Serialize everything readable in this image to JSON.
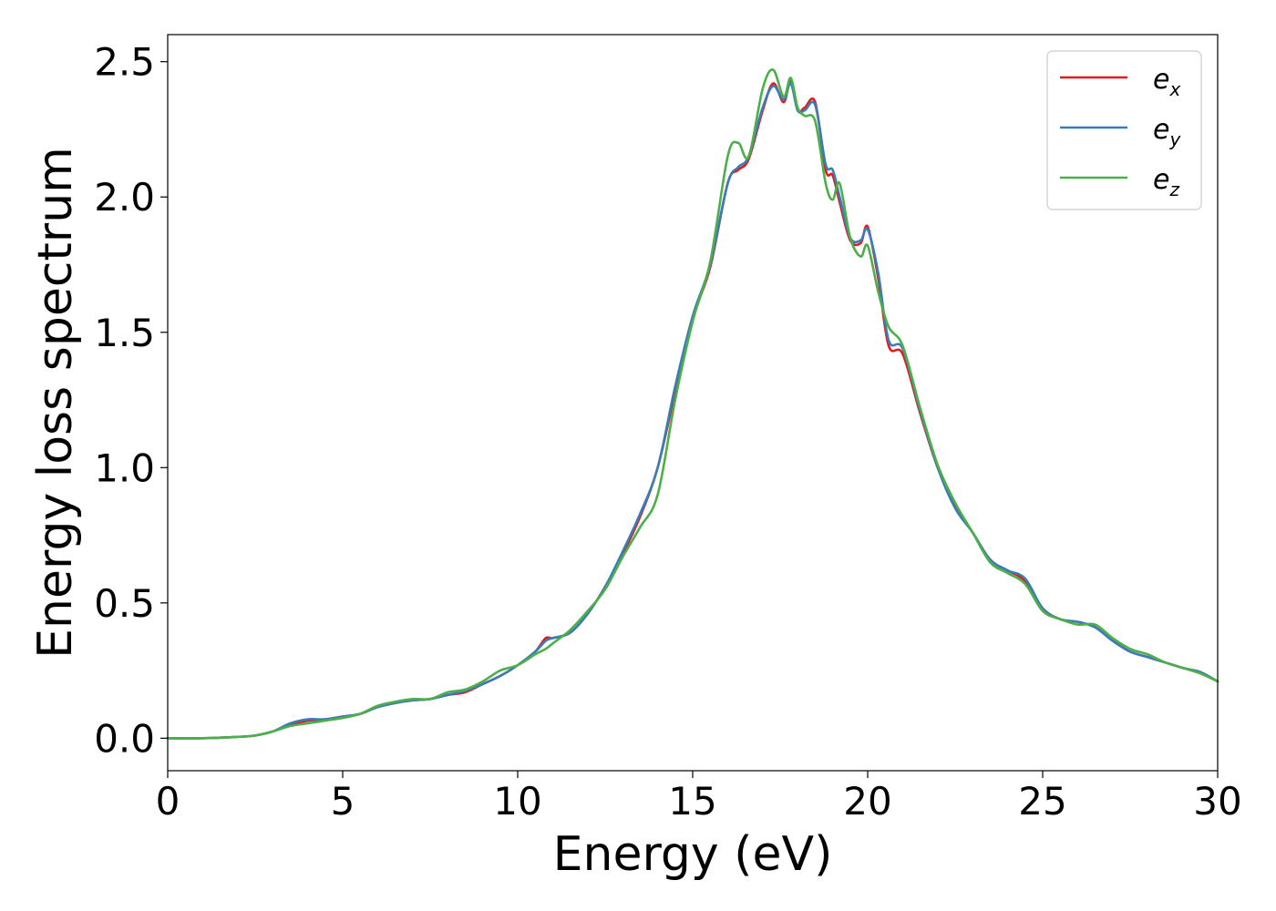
{
  "chart_data": {
    "type": "line",
    "title": "",
    "xlabel": "Energy (eV)",
    "ylabel": "Energy loss spectrum",
    "xlim": [
      0,
      30
    ],
    "ylim": [
      -0.12,
      2.6
    ],
    "xticks": [
      0,
      5,
      10,
      15,
      20,
      25,
      30
    ],
    "yticks": [
      0.0,
      0.5,
      1.0,
      1.5,
      2.0,
      2.5
    ],
    "xtick_labels": [
      "0",
      "5",
      "10",
      "15",
      "20",
      "25",
      "30"
    ],
    "ytick_labels": [
      "0.0",
      "0.5",
      "1.0",
      "1.5",
      "2.0",
      "2.5"
    ],
    "grid": false,
    "legend_position": "top-right",
    "series": [
      {
        "name": "e_x",
        "name_base": "e",
        "name_sub": "x",
        "color": "#e41a1c",
        "x": [
          0,
          1,
          2,
          2.5,
          3,
          3.5,
          4,
          4.5,
          5,
          5.5,
          6,
          6.5,
          7,
          7.5,
          8,
          8.5,
          9,
          9.5,
          10,
          10.5,
          10.8,
          11,
          11.5,
          12,
          12.5,
          13,
          13.5,
          14,
          14.5,
          15,
          15.5,
          16,
          16.3,
          16.6,
          17,
          17.3,
          17.6,
          17.8,
          18,
          18.2,
          18.5,
          18.8,
          19,
          19.2,
          19.5,
          19.8,
          20,
          20.3,
          20.6,
          21,
          21.5,
          22,
          22.5,
          23,
          23.5,
          24,
          24.5,
          25,
          25.5,
          26,
          26.5,
          27,
          27.5,
          28,
          28.5,
          29,
          29.5,
          30
        ],
        "values": [
          0.0,
          0.0,
          0.005,
          0.01,
          0.025,
          0.05,
          0.065,
          0.07,
          0.08,
          0.09,
          0.115,
          0.13,
          0.14,
          0.145,
          0.16,
          0.17,
          0.2,
          0.23,
          0.27,
          0.32,
          0.37,
          0.37,
          0.39,
          0.46,
          0.56,
          0.68,
          0.82,
          1.0,
          1.28,
          1.55,
          1.74,
          2.05,
          2.1,
          2.14,
          2.32,
          2.42,
          2.35,
          2.43,
          2.32,
          2.33,
          2.35,
          2.1,
          2.08,
          1.98,
          1.84,
          1.83,
          1.89,
          1.7,
          1.45,
          1.42,
          1.2,
          1.0,
          0.86,
          0.76,
          0.66,
          0.62,
          0.58,
          0.48,
          0.44,
          0.43,
          0.41,
          0.36,
          0.32,
          0.3,
          0.28,
          0.26,
          0.24,
          0.21
        ]
      },
      {
        "name": "e_y",
        "name_base": "e",
        "name_sub": "y",
        "color": "#377eb8",
        "x": [
          0,
          1,
          2,
          2.5,
          3,
          3.5,
          4,
          4.5,
          5,
          5.5,
          6,
          6.5,
          7,
          7.5,
          8,
          8.5,
          9,
          9.5,
          10,
          10.5,
          10.8,
          11,
          11.5,
          12,
          12.5,
          13,
          13.5,
          14,
          14.5,
          15,
          15.5,
          16,
          16.3,
          16.6,
          17,
          17.3,
          17.6,
          17.8,
          18,
          18.2,
          18.5,
          18.8,
          19,
          19.2,
          19.5,
          19.8,
          20,
          20.3,
          20.6,
          21,
          21.5,
          22,
          22.5,
          23,
          23.5,
          24,
          24.5,
          25,
          25.5,
          26,
          26.5,
          27,
          27.5,
          28,
          28.5,
          29,
          29.5,
          30
        ],
        "values": [
          0.0,
          0.0,
          0.005,
          0.01,
          0.025,
          0.055,
          0.07,
          0.07,
          0.08,
          0.09,
          0.115,
          0.13,
          0.14,
          0.145,
          0.16,
          0.175,
          0.2,
          0.23,
          0.27,
          0.32,
          0.36,
          0.37,
          0.39,
          0.46,
          0.56,
          0.69,
          0.83,
          1.0,
          1.3,
          1.56,
          1.75,
          2.05,
          2.11,
          2.15,
          2.33,
          2.41,
          2.36,
          2.42,
          2.32,
          2.32,
          2.34,
          2.12,
          2.1,
          2.0,
          1.85,
          1.84,
          1.88,
          1.72,
          1.47,
          1.44,
          1.21,
          1.0,
          0.85,
          0.76,
          0.66,
          0.62,
          0.59,
          0.48,
          0.44,
          0.43,
          0.41,
          0.36,
          0.32,
          0.3,
          0.28,
          0.26,
          0.245,
          0.21
        ]
      },
      {
        "name": "e_z",
        "name_base": "e",
        "name_sub": "z",
        "color": "#4daf4a",
        "x": [
          0,
          1,
          2,
          2.5,
          3,
          3.5,
          4,
          4.5,
          5,
          5.5,
          6,
          6.5,
          7,
          7.5,
          8,
          8.5,
          9,
          9.5,
          10,
          10.5,
          10.8,
          11,
          11.5,
          12,
          12.5,
          13,
          13.5,
          14,
          14.5,
          15,
          15.5,
          16,
          16.3,
          16.6,
          17,
          17.3,
          17.6,
          17.8,
          18,
          18.2,
          18.5,
          18.8,
          19,
          19.2,
          19.5,
          19.8,
          20,
          20.3,
          20.6,
          21,
          21.5,
          22,
          22.5,
          23,
          23.5,
          24,
          24.5,
          25,
          25.5,
          26,
          26.5,
          27,
          27.5,
          28,
          28.5,
          29,
          29.5,
          30
        ],
        "values": [
          0.0,
          0.0,
          0.005,
          0.01,
          0.025,
          0.045,
          0.055,
          0.065,
          0.075,
          0.09,
          0.12,
          0.135,
          0.145,
          0.145,
          0.17,
          0.18,
          0.21,
          0.25,
          0.27,
          0.31,
          0.33,
          0.35,
          0.4,
          0.47,
          0.55,
          0.67,
          0.78,
          0.9,
          1.25,
          1.54,
          1.76,
          2.15,
          2.2,
          2.15,
          2.4,
          2.47,
          2.37,
          2.44,
          2.33,
          2.3,
          2.28,
          2.05,
          1.99,
          2.05,
          1.85,
          1.78,
          1.82,
          1.65,
          1.52,
          1.45,
          1.22,
          1.01,
          0.87,
          0.76,
          0.65,
          0.61,
          0.57,
          0.47,
          0.44,
          0.42,
          0.42,
          0.37,
          0.33,
          0.31,
          0.28,
          0.26,
          0.24,
          0.21
        ]
      }
    ]
  }
}
